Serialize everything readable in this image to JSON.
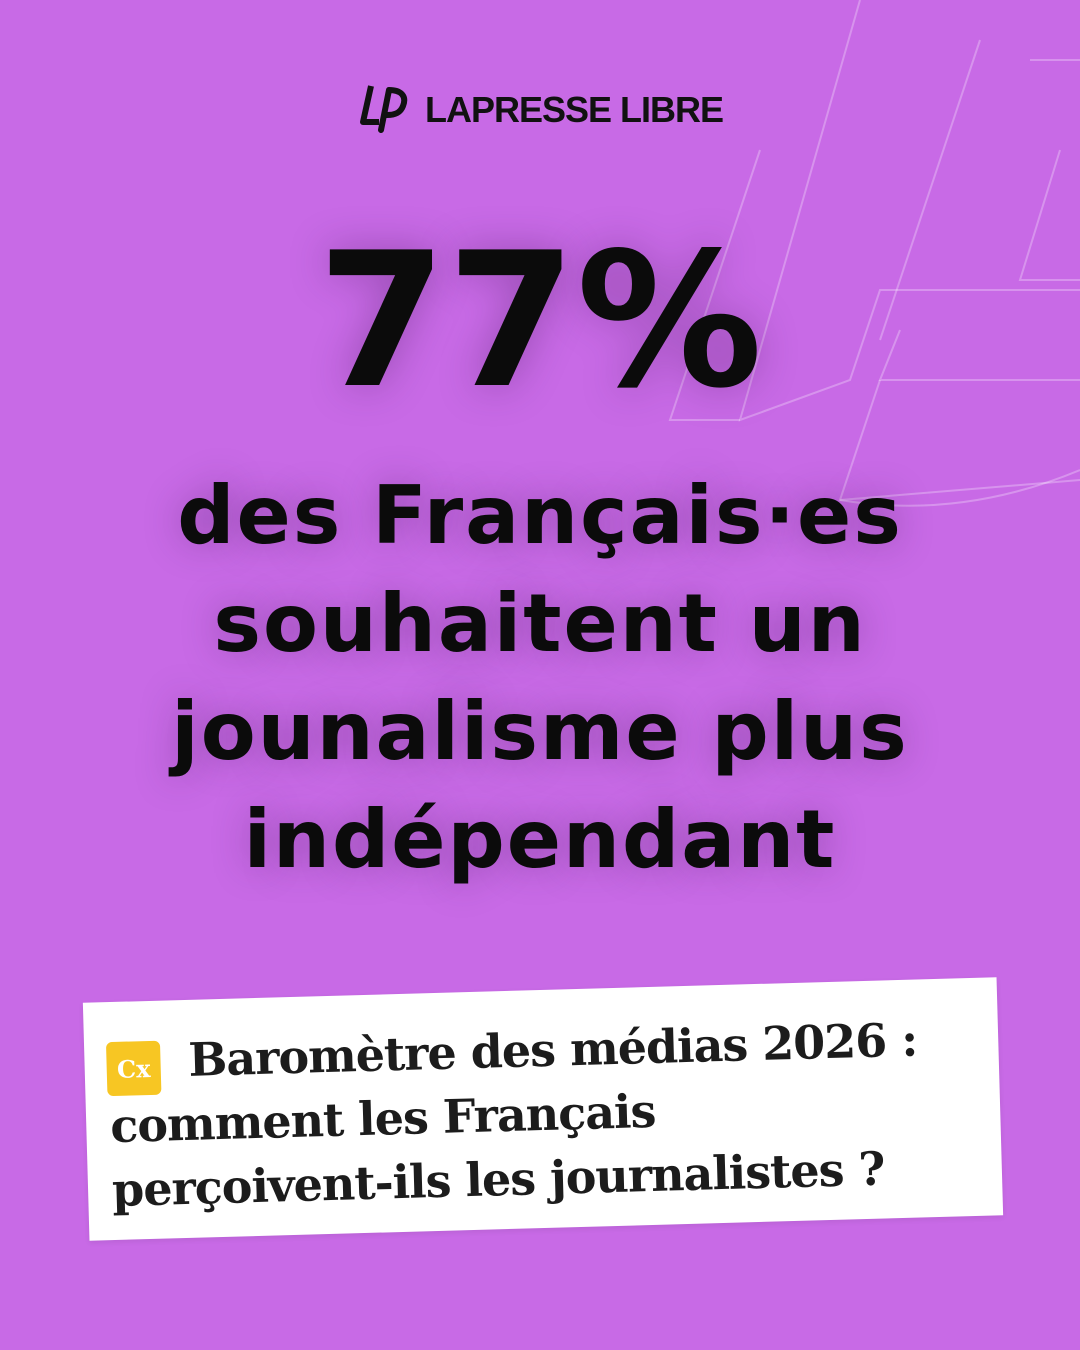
{
  "brand": {
    "name": "LAPRESSE LIBRE",
    "logo_icon": "lp-monogram-icon"
  },
  "stat": {
    "value": "77%"
  },
  "headline": {
    "lines": [
      "des Français·es",
      "souhaitent un",
      "jounalisme plus",
      "indépendant"
    ]
  },
  "source_card": {
    "icon": "cx-logo-icon",
    "icon_text": "Cx",
    "icon_color": "#f7c623",
    "title_lines": [
      "Baromètre des médias 2026 :",
      "comment les Français",
      "perçoivent-ils les journalistes ?"
    ]
  },
  "colors": {
    "background": "#c86ae6",
    "text": "#0b0b0b",
    "card": "#ffffff"
  }
}
